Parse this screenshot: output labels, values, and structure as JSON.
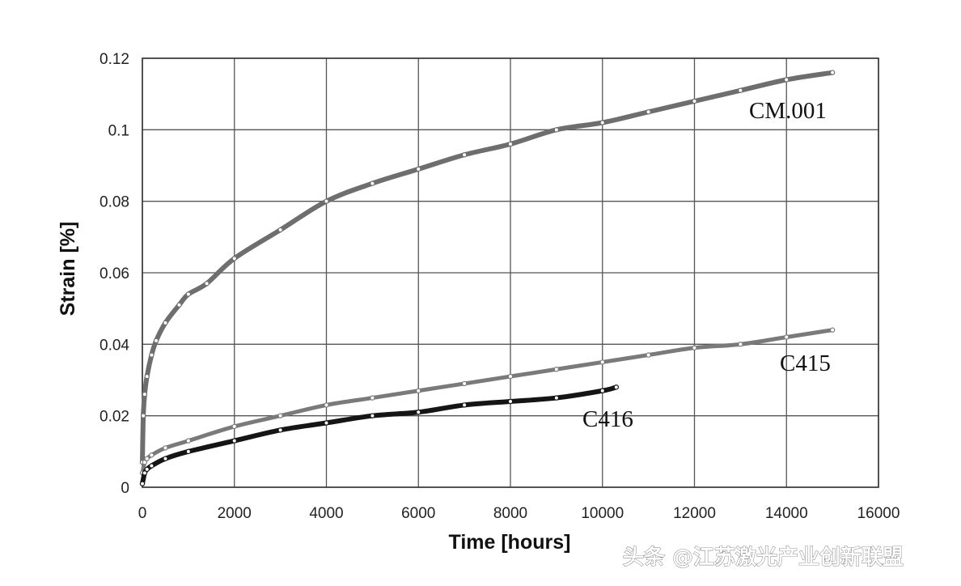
{
  "chart_data": {
    "type": "line",
    "xlabel": "Time [hours]",
    "ylabel": "Strain [%]",
    "xlim": [
      0,
      16000
    ],
    "ylim": [
      0,
      0.12
    ],
    "x_ticks": [
      "0",
      "2000",
      "4000",
      "6000",
      "8000",
      "10000",
      "12000",
      "14000",
      "16000"
    ],
    "y_ticks": [
      "0",
      "0.02",
      "0.04",
      "0.06",
      "0.08",
      "0.1",
      "0.12"
    ],
    "grid": true,
    "series": [
      {
        "name": "CM.001",
        "color": "#6e6e6e",
        "x": [
          0,
          20,
          50,
          100,
          200,
          300,
          500,
          800,
          1000,
          1400,
          2000,
          3000,
          4000,
          5000,
          6000,
          7000,
          8000,
          9000,
          10000,
          11000,
          12000,
          13000,
          14000,
          15000
        ],
        "y": [
          0.007,
          0.02,
          0.026,
          0.031,
          0.037,
          0.041,
          0.046,
          0.051,
          0.054,
          0.057,
          0.064,
          0.072,
          0.08,
          0.085,
          0.089,
          0.093,
          0.096,
          0.1,
          0.102,
          0.105,
          0.108,
          0.111,
          0.114,
          0.116
        ]
      },
      {
        "name": "C415",
        "color": "#7a7a7a",
        "x": [
          0,
          50,
          100,
          200,
          500,
          1000,
          2000,
          3000,
          4000,
          5000,
          6000,
          7000,
          8000,
          9000,
          10000,
          11000,
          12000,
          13000,
          14000,
          15000
        ],
        "y": [
          0.004,
          0.007,
          0.008,
          0.009,
          0.011,
          0.013,
          0.017,
          0.02,
          0.023,
          0.025,
          0.027,
          0.029,
          0.031,
          0.033,
          0.035,
          0.037,
          0.039,
          0.04,
          0.042,
          0.044
        ]
      },
      {
        "name": "C416",
        "color": "#151515",
        "x": [
          0,
          50,
          100,
          200,
          500,
          1000,
          2000,
          3000,
          4000,
          5000,
          6000,
          7000,
          8000,
          9000,
          10000,
          10300
        ],
        "y": [
          0.001,
          0.004,
          0.005,
          0.006,
          0.008,
          0.01,
          0.013,
          0.016,
          0.018,
          0.02,
          0.021,
          0.023,
          0.024,
          0.025,
          0.027,
          0.028
        ]
      }
    ],
    "annotations": [
      "CM.001",
      "C415",
      "C416"
    ]
  },
  "watermark": "头条 @江苏激光产业创新联盟"
}
